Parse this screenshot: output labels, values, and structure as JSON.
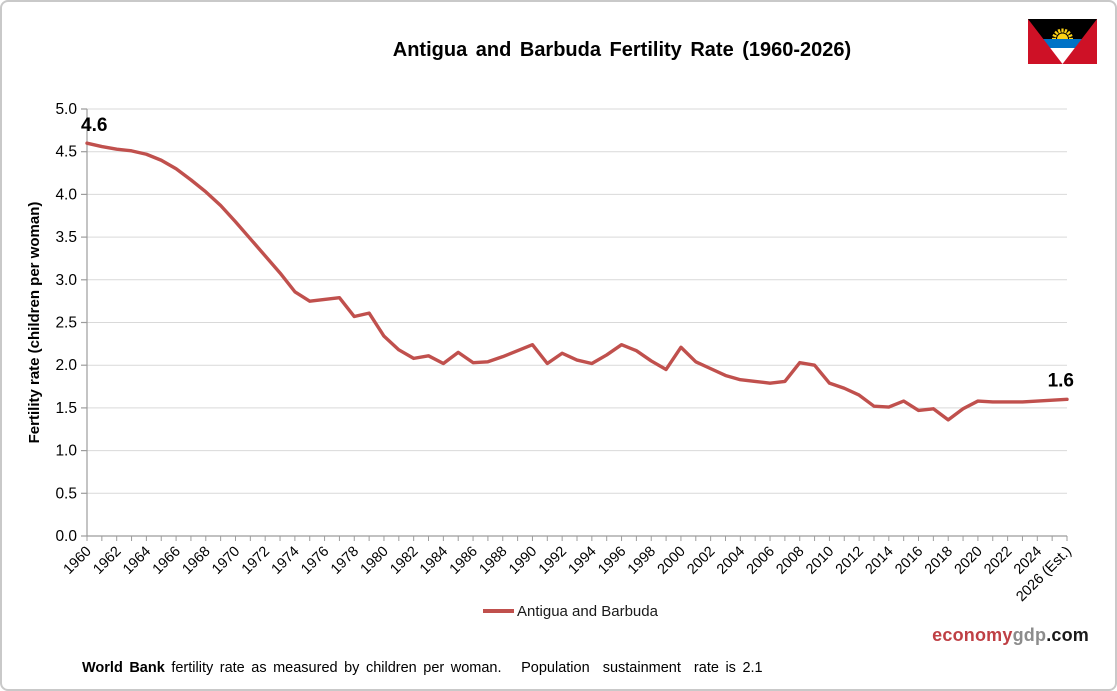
{
  "title": "Antigua and Barbuda Fertility Rate (1960-2026)",
  "legend": {
    "label": "Antigua and Barbuda"
  },
  "branding": {
    "part1": "economy",
    "part2": "gdp",
    "part3": ".com"
  },
  "footer": {
    "bold": "World Bank",
    "text": " fertility rate as measured by children per woman.   Population  sustainment  rate is 2.1"
  },
  "colors": {
    "line": "#C0504D",
    "grid": "#D9D9D9",
    "axis": "#9C9C9C",
    "text": "#1A1A1A",
    "brand_red": "#BF4045",
    "brand_gray": "#8C8C8C"
  },
  "flag": {
    "country": "Antigua and Barbuda",
    "colors": {
      "red": "#CE1126",
      "black": "#000000",
      "yellow": "#FCD116",
      "blue": "#0072C6",
      "white": "#FFFFFF"
    }
  },
  "chart_data": {
    "type": "line",
    "title": "Antigua and Barbuda Fertility Rate (1960-2026)",
    "xlabel": "",
    "ylabel": "Fertility rate (children per woman)",
    "ylim": [
      0,
      5
    ],
    "ytick_step": 0.5,
    "grid": "horizontal",
    "legend_position": "bottom-center",
    "years": [
      1960,
      1961,
      1962,
      1963,
      1964,
      1965,
      1966,
      1967,
      1968,
      1969,
      1970,
      1971,
      1972,
      1973,
      1974,
      1975,
      1976,
      1977,
      1978,
      1979,
      1980,
      1981,
      1982,
      1983,
      1984,
      1985,
      1986,
      1987,
      1988,
      1989,
      1990,
      1991,
      1992,
      1993,
      1994,
      1995,
      1996,
      1997,
      1998,
      1999,
      2000,
      2001,
      2002,
      2003,
      2004,
      2005,
      2006,
      2007,
      2008,
      2009,
      2010,
      2011,
      2012,
      2013,
      2014,
      2015,
      2016,
      2017,
      2018,
      2019,
      2020,
      2021,
      2022,
      2023,
      2024,
      2025,
      2026
    ],
    "x_tick_labels": [
      "1960",
      "1962",
      "1964",
      "1966",
      "1968",
      "1970",
      "1972",
      "1974",
      "1976",
      "1978",
      "1980",
      "1982",
      "1984",
      "1986",
      "1988",
      "1990",
      "1992",
      "1994",
      "1996",
      "1998",
      "2000",
      "2002",
      "2004",
      "2006",
      "2008",
      "2010",
      "2012",
      "2014",
      "2016",
      "2018",
      "2020",
      "2022",
      "2024",
      "2026 (Est.)"
    ],
    "series": [
      {
        "name": "Antigua and Barbuda",
        "color": "#C0504D",
        "values": [
          4.6,
          4.56,
          4.53,
          4.51,
          4.47,
          4.4,
          4.3,
          4.17,
          4.03,
          3.87,
          3.68,
          3.48,
          3.28,
          3.08,
          2.86,
          2.75,
          2.77,
          2.79,
          2.57,
          2.61,
          2.34,
          2.18,
          2.08,
          2.11,
          2.02,
          2.15,
          2.03,
          2.04,
          2.1,
          2.17,
          2.24,
          2.02,
          2.14,
          2.06,
          2.02,
          2.12,
          2.24,
          2.17,
          2.05,
          1.95,
          2.21,
          2.04,
          1.96,
          1.88,
          1.83,
          1.81,
          1.79,
          1.81,
          2.03,
          2.0,
          1.79,
          1.73,
          1.65,
          1.52,
          1.51,
          1.58,
          1.47,
          1.49,
          1.36,
          1.49,
          1.58,
          1.57,
          1.57,
          1.57,
          1.58,
          1.59,
          1.6
        ]
      }
    ],
    "annotations": [
      {
        "text": "4.6",
        "at": "first"
      },
      {
        "text": "1.6",
        "at": "last"
      }
    ]
  }
}
